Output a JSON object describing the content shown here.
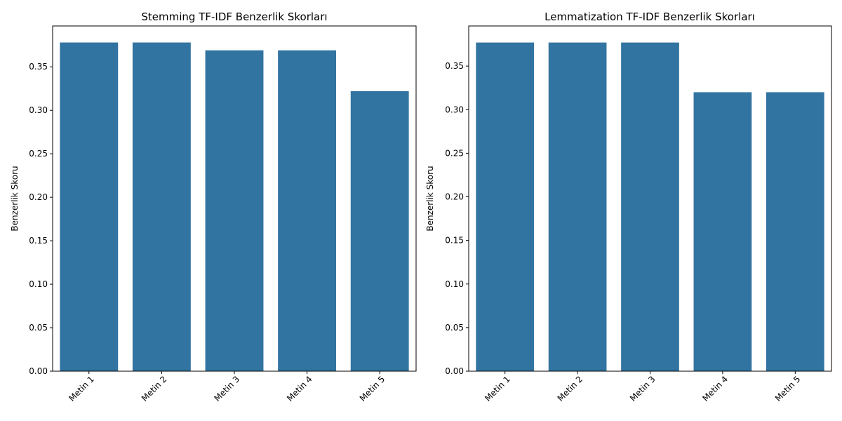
{
  "chart_data": [
    {
      "type": "bar",
      "title": "Stemming TF-IDF Benzerlik Skorları",
      "xlabel": "",
      "ylabel": "Benzerlik Skoru",
      "categories": [
        "Metin 1",
        "Metin 2",
        "Metin 3",
        "Metin 4",
        "Metin 5"
      ],
      "values": [
        0.378,
        0.378,
        0.369,
        0.369,
        0.322
      ],
      "ylim": [
        0,
        0.397
      ],
      "yticks": [
        "0.00",
        "0.05",
        "0.10",
        "0.15",
        "0.20",
        "0.25",
        "0.30",
        "0.35"
      ],
      "color": "#3274a1",
      "grid": false,
      "xtick_rotation": 45
    },
    {
      "type": "bar",
      "title": "Lemmatization TF-IDF Benzerlik Skorları",
      "xlabel": "",
      "ylabel": "Benzerlik Skoru",
      "categories": [
        "Metin 1",
        "Metin 2",
        "Metin 3",
        "Metin 4",
        "Metin 5"
      ],
      "values": [
        0.377,
        0.377,
        0.377,
        0.32,
        0.32
      ],
      "ylim": [
        0,
        0.396
      ],
      "yticks": [
        "0.00",
        "0.05",
        "0.10",
        "0.15",
        "0.20",
        "0.25",
        "0.30",
        "0.35"
      ],
      "color": "#3274a1",
      "grid": false,
      "xtick_rotation": 45
    }
  ]
}
